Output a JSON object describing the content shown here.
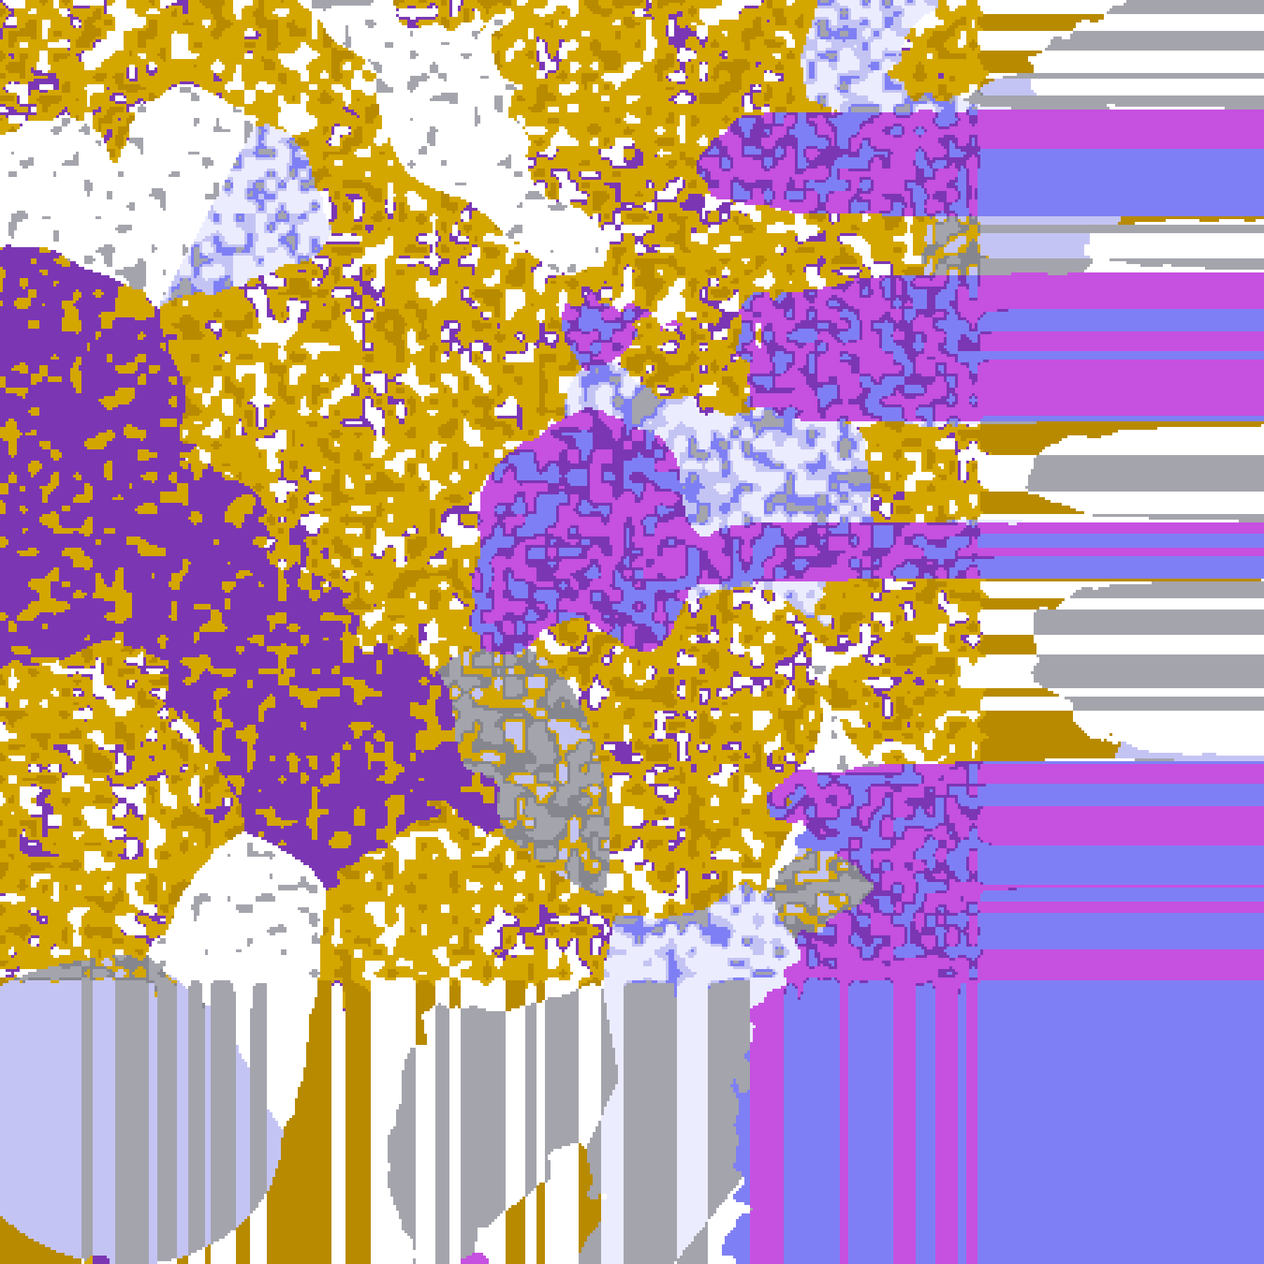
{
  "image": {
    "kind": "classified satellite imagery",
    "palette": {
      "clear": "#ffffff",
      "gold": "#d4a600",
      "dark_gold": "#b88a00",
      "purple": "#7b36b4",
      "magenta": "#c650e0",
      "gray": "#a4a4ac",
      "dark_gray": "#86868e",
      "periwinkle": "#7f7ff5",
      "light_blue": "#c4c4f4",
      "lavender": "#ececff"
    }
  }
}
